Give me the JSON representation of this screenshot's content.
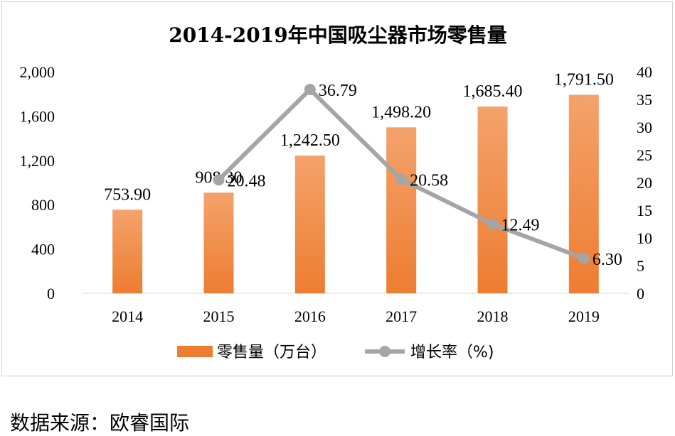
{
  "chart_data": {
    "type": "bar",
    "title": "2014-2019年中国吸尘器市场零售量",
    "categories": [
      "2014",
      "2015",
      "2016",
      "2017",
      "2018",
      "2019"
    ],
    "series": [
      {
        "name": "零售量（万台）",
        "type": "bar",
        "axis": "left",
        "color": "#ED7D31",
        "values": [
          753.9,
          908.3,
          1242.5,
          1498.2,
          1685.4,
          1791.5
        ],
        "labels": [
          "753.90",
          "908.30",
          "1,242.50",
          "1,498.20",
          "1,685.40",
          "1,791.50"
        ]
      },
      {
        "name": "增长率（%)",
        "type": "line",
        "axis": "right",
        "color": "#A5A5A5",
        "x": [
          "2015",
          "2016",
          "2017",
          "2018",
          "2019"
        ],
        "values": [
          20.48,
          36.79,
          20.58,
          12.49,
          6.3
        ],
        "labels": [
          "20.48",
          "36.79",
          "20.58",
          "12.49",
          "6.30"
        ]
      }
    ],
    "y_left": {
      "ylim": [
        0,
        2000
      ],
      "ticks": [
        0,
        400,
        800,
        1200,
        1600,
        2000
      ],
      "tick_labels": [
        "0",
        "400",
        "800",
        "1,200",
        "1,600",
        "2,000"
      ]
    },
    "y_right": {
      "ylim": [
        0,
        40
      ],
      "ticks": [
        0,
        5,
        10,
        15,
        20,
        25,
        30,
        35,
        40
      ],
      "tick_labels": [
        "0",
        "5",
        "10",
        "15",
        "20",
        "25",
        "30",
        "35",
        "40"
      ]
    },
    "xlabel": "",
    "ylabel": "",
    "grid": false,
    "legend": "bottom"
  },
  "source_note": "数据来源：欧睿国际"
}
